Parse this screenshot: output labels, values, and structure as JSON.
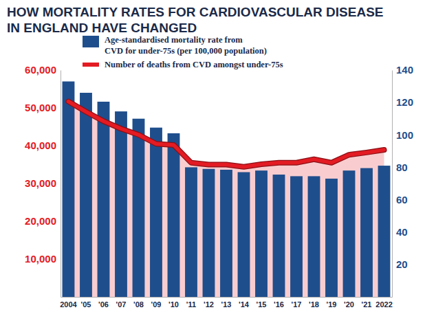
{
  "chart_data": {
    "type": "bar",
    "title": "HOW MORTALITY RATES FOR CARDIOVASCULAR DISEASE IN ENGLAND HAVE CHANGED",
    "categories": [
      "2004",
      "'05",
      "'06",
      "'07",
      "'08",
      "'09",
      "'10",
      "'11",
      "'12",
      "'13",
      "'14",
      "'15",
      "'16",
      "'17",
      "'18",
      "'19",
      "'20",
      "'21",
      "2022"
    ],
    "series": [
      {
        "name": "Age-standardised mortality rate from CVD for under-75s (per 100,000 population)",
        "type": "bar",
        "color": "#1f4e8c",
        "axis": "y2",
        "values": [
          133,
          126,
          120.5,
          114.5,
          110,
          104.5,
          101,
          80,
          79,
          78.5,
          77,
          78,
          75.5,
          74.5,
          74.5,
          73,
          78,
          79.5,
          81
        ]
      },
      {
        "name": "Number of deaths from CVD amongst under-75s",
        "type": "line",
        "color": "#e31b23",
        "values": [
          51700,
          49000,
          46500,
          44500,
          42900,
          40500,
          40200,
          35500,
          35000,
          35000,
          34400,
          35100,
          35500,
          35500,
          36400,
          35500,
          37600,
          38200,
          38900
        ]
      }
    ],
    "ylim": [
      0,
      60000
    ],
    "yticks": [
      {
        "value": 10000,
        "label": "10,000"
      },
      {
        "value": 20000,
        "label": "20,000"
      },
      {
        "value": 30000,
        "label": "30,000"
      },
      {
        "value": 40000,
        "label": "40,000"
      },
      {
        "value": 50000,
        "label": "50,000"
      },
      {
        "value": 60000,
        "label": "60,000"
      }
    ],
    "y2lim": [
      0,
      140
    ],
    "y2ticks": [
      20,
      40,
      60,
      80,
      100,
      120,
      140
    ],
    "legend": "top-left"
  }
}
